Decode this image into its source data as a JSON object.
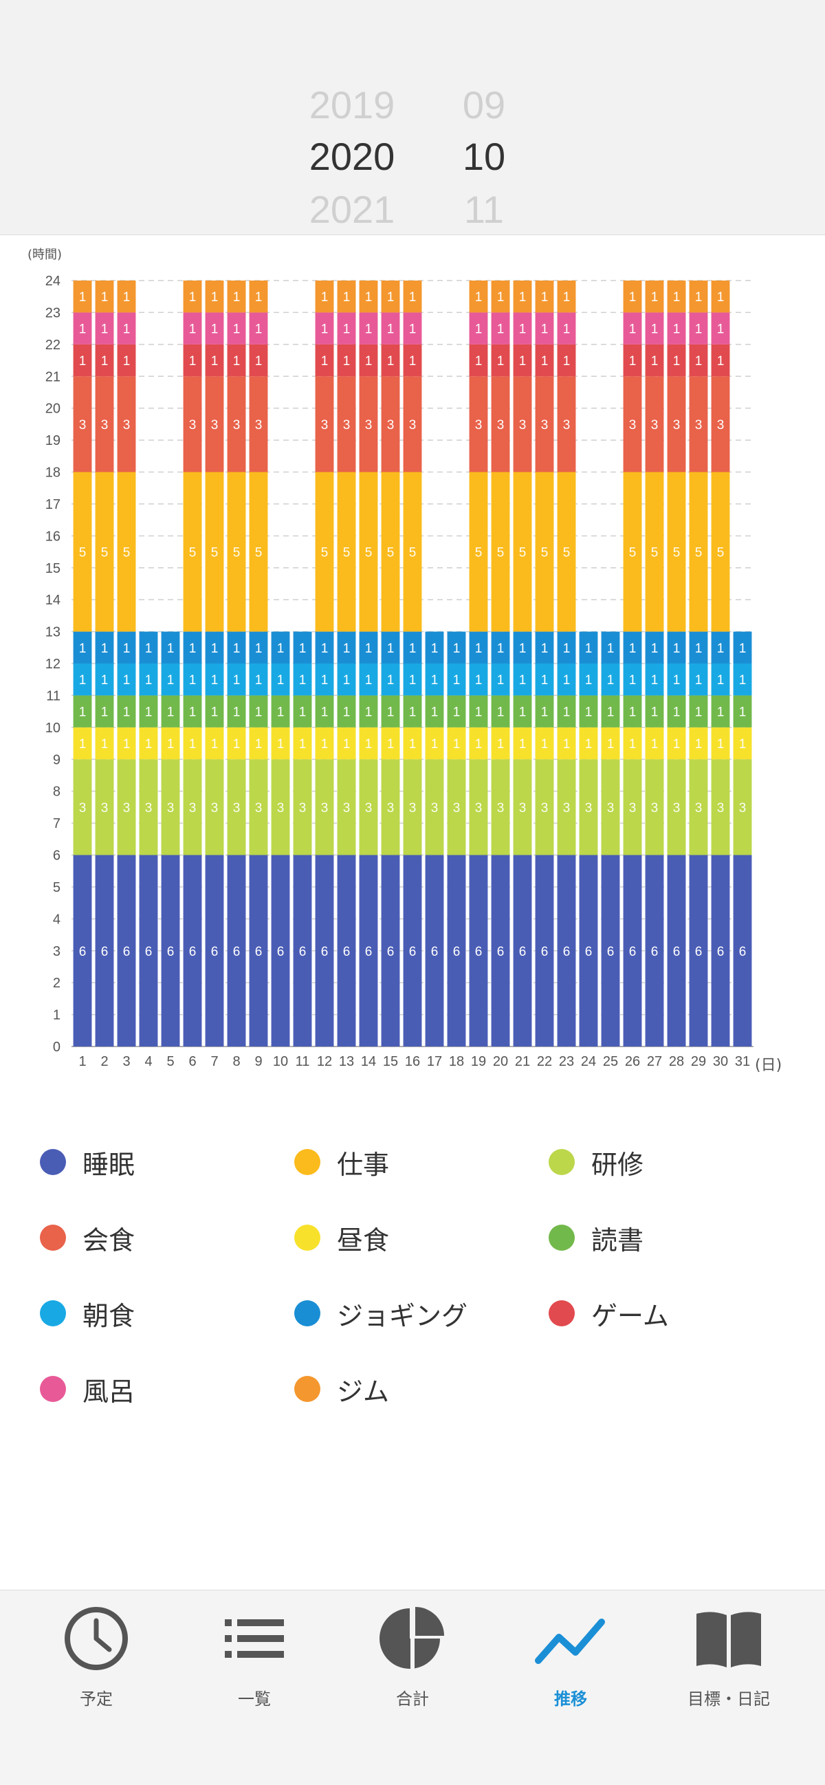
{
  "picker": {
    "years": [
      "2019",
      "2020",
      "2021"
    ],
    "months": [
      "09",
      "10",
      "11"
    ],
    "selected_year": "2020",
    "selected_month": "10"
  },
  "chart_data": {
    "type": "bar",
    "stacked": true,
    "ylabel": "(時間)",
    "xlabel": "(日)",
    "ylim": [
      0,
      24
    ],
    "yticks": [
      0,
      1,
      2,
      3,
      4,
      5,
      6,
      7,
      8,
      9,
      10,
      11,
      12,
      13,
      14,
      15,
      16,
      17,
      18,
      19,
      20,
      21,
      22,
      23,
      24
    ],
    "grid": true,
    "categories": [
      "1",
      "2",
      "3",
      "4",
      "5",
      "6",
      "7",
      "8",
      "9",
      "10",
      "11",
      "12",
      "13",
      "14",
      "15",
      "16",
      "17",
      "18",
      "19",
      "20",
      "21",
      "22",
      "23",
      "24",
      "25",
      "26",
      "27",
      "28",
      "29",
      "30",
      "31"
    ],
    "series": [
      {
        "name": "睡眠",
        "color": "#4a5db5",
        "values": [
          6,
          6,
          6,
          6,
          6,
          6,
          6,
          6,
          6,
          6,
          6,
          6,
          6,
          6,
          6,
          6,
          6,
          6,
          6,
          6,
          6,
          6,
          6,
          6,
          6,
          6,
          6,
          6,
          6,
          6,
          6
        ]
      },
      {
        "name": "仕事",
        "color": "#fbbb1c",
        "values": [
          5,
          5,
          5,
          0,
          0,
          5,
          5,
          5,
          5,
          0,
          0,
          5,
          5,
          5,
          5,
          5,
          0,
          0,
          5,
          5,
          5,
          5,
          5,
          0,
          0,
          5,
          5,
          5,
          5,
          5,
          0
        ]
      },
      {
        "name": "研修",
        "color": "#bcd74a",
        "values": [
          3,
          3,
          3,
          3,
          3,
          3,
          3,
          3,
          3,
          3,
          3,
          3,
          3,
          3,
          3,
          3,
          3,
          3,
          3,
          3,
          3,
          3,
          3,
          3,
          3,
          3,
          3,
          3,
          3,
          3,
          3
        ]
      },
      {
        "name": "会食",
        "color": "#e9624a",
        "values": [
          3,
          3,
          3,
          0,
          0,
          3,
          3,
          3,
          3,
          0,
          0,
          3,
          3,
          3,
          3,
          3,
          0,
          0,
          3,
          3,
          3,
          3,
          3,
          0,
          0,
          3,
          3,
          3,
          3,
          3,
          0
        ]
      },
      {
        "name": "昼食",
        "color": "#f8e12b",
        "values": [
          1,
          1,
          1,
          1,
          1,
          1,
          1,
          1,
          1,
          1,
          1,
          1,
          1,
          1,
          1,
          1,
          1,
          1,
          1,
          1,
          1,
          1,
          1,
          1,
          1,
          1,
          1,
          1,
          1,
          1,
          1
        ]
      },
      {
        "name": "読書",
        "color": "#72b94b",
        "values": [
          1,
          1,
          1,
          1,
          1,
          1,
          1,
          1,
          1,
          1,
          1,
          1,
          1,
          1,
          1,
          1,
          1,
          1,
          1,
          1,
          1,
          1,
          1,
          1,
          1,
          1,
          1,
          1,
          1,
          1,
          1
        ]
      },
      {
        "name": "朝食",
        "color": "#18a9e4",
        "values": [
          1,
          1,
          1,
          1,
          1,
          1,
          1,
          1,
          1,
          1,
          1,
          1,
          1,
          1,
          1,
          1,
          1,
          1,
          1,
          1,
          1,
          1,
          1,
          1,
          1,
          1,
          1,
          1,
          1,
          1,
          1
        ]
      },
      {
        "name": "ジョギング",
        "color": "#1a8ed4",
        "values": [
          1,
          1,
          1,
          1,
          1,
          1,
          1,
          1,
          1,
          1,
          1,
          1,
          1,
          1,
          1,
          1,
          1,
          1,
          1,
          1,
          1,
          1,
          1,
          1,
          1,
          1,
          1,
          1,
          1,
          1,
          1
        ]
      },
      {
        "name": "ゲーム",
        "color": "#e14a4e",
        "values": [
          1,
          1,
          1,
          0,
          0,
          1,
          1,
          1,
          1,
          0,
          0,
          1,
          1,
          1,
          1,
          1,
          0,
          0,
          1,
          1,
          1,
          1,
          1,
          0,
          0,
          1,
          1,
          1,
          1,
          1,
          0
        ]
      },
      {
        "name": "風呂",
        "color": "#e85a97",
        "values": [
          1,
          1,
          1,
          0,
          0,
          1,
          1,
          1,
          1,
          0,
          0,
          1,
          1,
          1,
          1,
          1,
          0,
          0,
          1,
          1,
          1,
          1,
          1,
          0,
          0,
          1,
          1,
          1,
          1,
          1,
          0
        ]
      },
      {
        "name": "ジム",
        "color": "#f4972e",
        "values": [
          1,
          1,
          1,
          0,
          0,
          1,
          1,
          1,
          1,
          0,
          0,
          1,
          1,
          1,
          1,
          1,
          0,
          0,
          1,
          1,
          1,
          1,
          1,
          0,
          0,
          1,
          1,
          1,
          1,
          1,
          0
        ]
      }
    ],
    "stack_order": [
      "睡眠",
      "研修",
      "昼食",
      "読書",
      "朝食",
      "ジョギング",
      "仕事",
      "会食",
      "ゲーム",
      "風呂",
      "ジム"
    ],
    "legend_placement": "below",
    "data_labels": true
  },
  "legend": [
    {
      "label": "睡眠",
      "color": "#4a5db5"
    },
    {
      "label": "仕事",
      "color": "#fbbb1c"
    },
    {
      "label": "研修",
      "color": "#bcd74a"
    },
    {
      "label": "会食",
      "color": "#e9624a"
    },
    {
      "label": "昼食",
      "color": "#f8e12b"
    },
    {
      "label": "読書",
      "color": "#72b94b"
    },
    {
      "label": "朝食",
      "color": "#18a9e4"
    },
    {
      "label": "ジョギング",
      "color": "#1a8ed4"
    },
    {
      "label": "ゲーム",
      "color": "#e14a4e"
    },
    {
      "label": "風呂",
      "color": "#e85a97"
    },
    {
      "label": "ジム",
      "color": "#f4972e"
    }
  ],
  "tabbar": {
    "active_color": "#1b8fd6",
    "icon_color": "#555555",
    "tabs": [
      {
        "label": "予定",
        "icon": "clock-icon",
        "active": false
      },
      {
        "label": "一覧",
        "icon": "list-icon",
        "active": false
      },
      {
        "label": "合計",
        "icon": "pie-chart-icon",
        "active": false
      },
      {
        "label": "推移",
        "icon": "trend-line-icon",
        "active": true
      },
      {
        "label": "目標・日記",
        "icon": "book-icon",
        "active": false
      }
    ]
  }
}
